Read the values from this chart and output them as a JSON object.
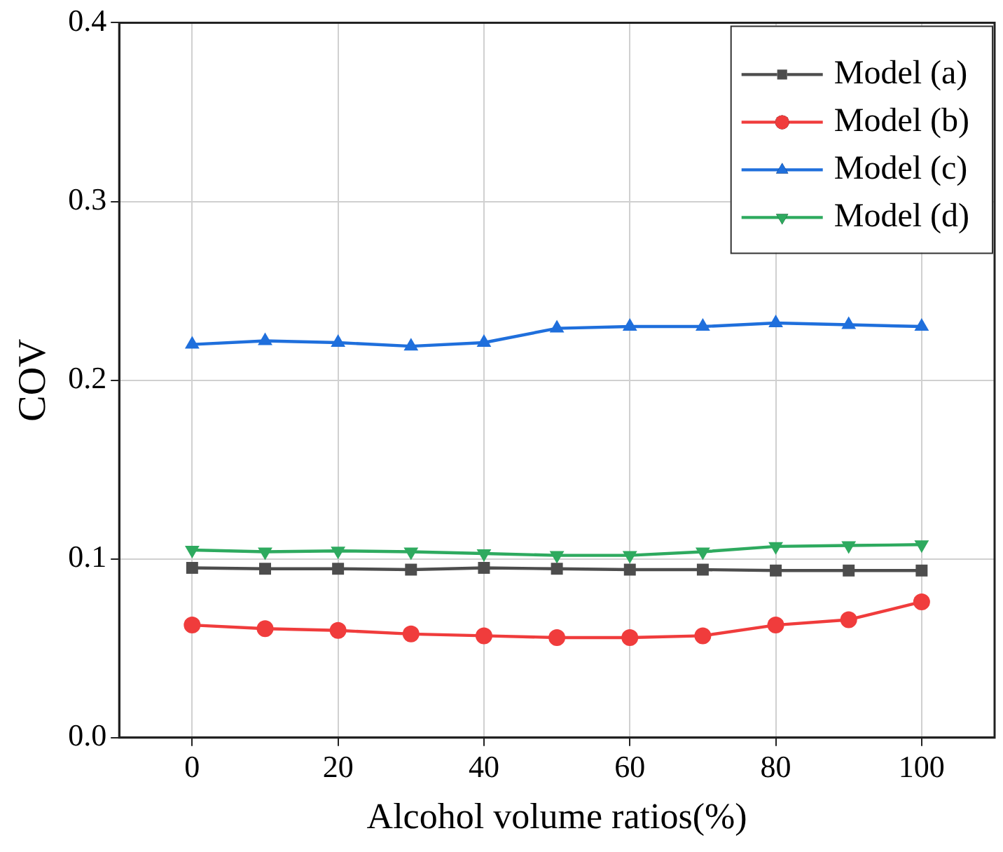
{
  "chart_data": {
    "type": "line",
    "xlabel": "Alcohol volume ratios(%)",
    "ylabel": "COV",
    "x": [
      0,
      10,
      20,
      30,
      40,
      50,
      60,
      70,
      80,
      90,
      100
    ],
    "xlim": [
      -10,
      110
    ],
    "xticks": [
      0,
      20,
      40,
      60,
      80,
      100
    ],
    "ylim": [
      0,
      0.4
    ],
    "yticks": [
      {
        "value": 0,
        "label": "0.0"
      },
      0.1,
      0.2,
      0.3,
      0.4
    ],
    "grid": true,
    "legend": "top right",
    "line_style": "solid",
    "series": [
      {
        "name": "Model (a)",
        "color": "#4d4d4d",
        "marker": "square",
        "values": [
          0.095,
          0.0945,
          0.0945,
          0.094,
          0.095,
          0.0945,
          0.094,
          0.094,
          0.0935,
          0.0935,
          0.0935
        ]
      },
      {
        "name": "Model (b)",
        "color": "#f03c3c",
        "marker": "circle",
        "values": [
          0.063,
          0.061,
          0.06,
          0.058,
          0.057,
          0.056,
          0.056,
          0.057,
          0.063,
          0.066,
          0.076
        ]
      },
      {
        "name": "Model (c)",
        "color": "#1f6fdc",
        "marker": "triangle",
        "values": [
          0.22,
          0.222,
          0.221,
          0.219,
          0.221,
          0.229,
          0.23,
          0.23,
          0.232,
          0.231,
          0.23
        ]
      },
      {
        "name": "Model (d)",
        "color": "#2eaa5f",
        "marker": "triangle_down",
        "values": [
          0.105,
          0.104,
          0.1045,
          0.104,
          0.103,
          0.102,
          0.102,
          0.104,
          0.107,
          0.1075,
          0.108
        ]
      }
    ]
  }
}
